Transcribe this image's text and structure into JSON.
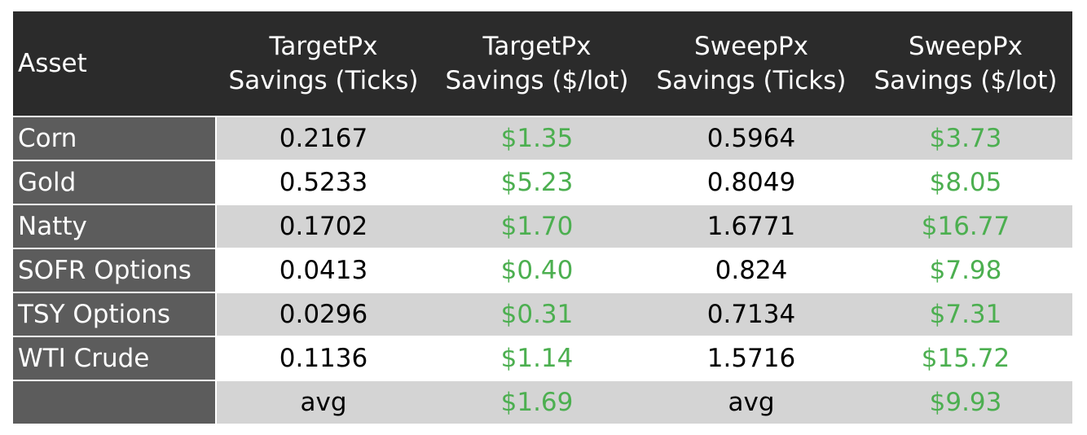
{
  "chart_data": {
    "type": "table",
    "columns": [
      {
        "key": "asset",
        "line1": "Asset",
        "line2": ""
      },
      {
        "key": "tgt_ticks",
        "line1": "TargetPx",
        "line2": "Savings (Ticks)"
      },
      {
        "key": "tgt_usd",
        "line1": "TargetPx",
        "line2": "Savings ($/lot)"
      },
      {
        "key": "swp_ticks",
        "line1": "SweepPx",
        "line2": "Savings (Ticks)"
      },
      {
        "key": "swp_usd",
        "line1": "SweepPx",
        "line2": "Savings ($/lot)"
      }
    ],
    "rows": [
      {
        "asset": "Corn",
        "tgt_ticks": "0.2167",
        "tgt_usd": "$1.35",
        "swp_ticks": "0.5964",
        "swp_usd": "$3.73"
      },
      {
        "asset": "Gold",
        "tgt_ticks": "0.5233",
        "tgt_usd": "$5.23",
        "swp_ticks": "0.8049",
        "swp_usd": "$8.05"
      },
      {
        "asset": "Natty",
        "tgt_ticks": "0.1702",
        "tgt_usd": "$1.70",
        "swp_ticks": "1.6771",
        "swp_usd": "$16.77"
      },
      {
        "asset": "SOFR Options",
        "tgt_ticks": "0.0413",
        "tgt_usd": "$0.40",
        "swp_ticks": "0.824",
        "swp_usd": "$7.98"
      },
      {
        "asset": "TSY Options",
        "tgt_ticks": "0.0296",
        "tgt_usd": "$0.31",
        "swp_ticks": "0.7134",
        "swp_usd": "$7.31"
      },
      {
        "asset": "WTI Crude",
        "tgt_ticks": "0.1136",
        "tgt_usd": "$1.14",
        "swp_ticks": "1.5716",
        "swp_usd": "$15.72"
      }
    ],
    "summary": {
      "asset": "",
      "tgt_ticks": "avg",
      "tgt_usd": "$1.69",
      "swp_ticks": "avg",
      "swp_usd": "$9.93"
    }
  },
  "colors": {
    "header_bg": "#2b2b2b",
    "asset_col_bg": "#5c5c5c",
    "row_shade": "#d4d4d4",
    "dollar_text": "#4caf50"
  }
}
